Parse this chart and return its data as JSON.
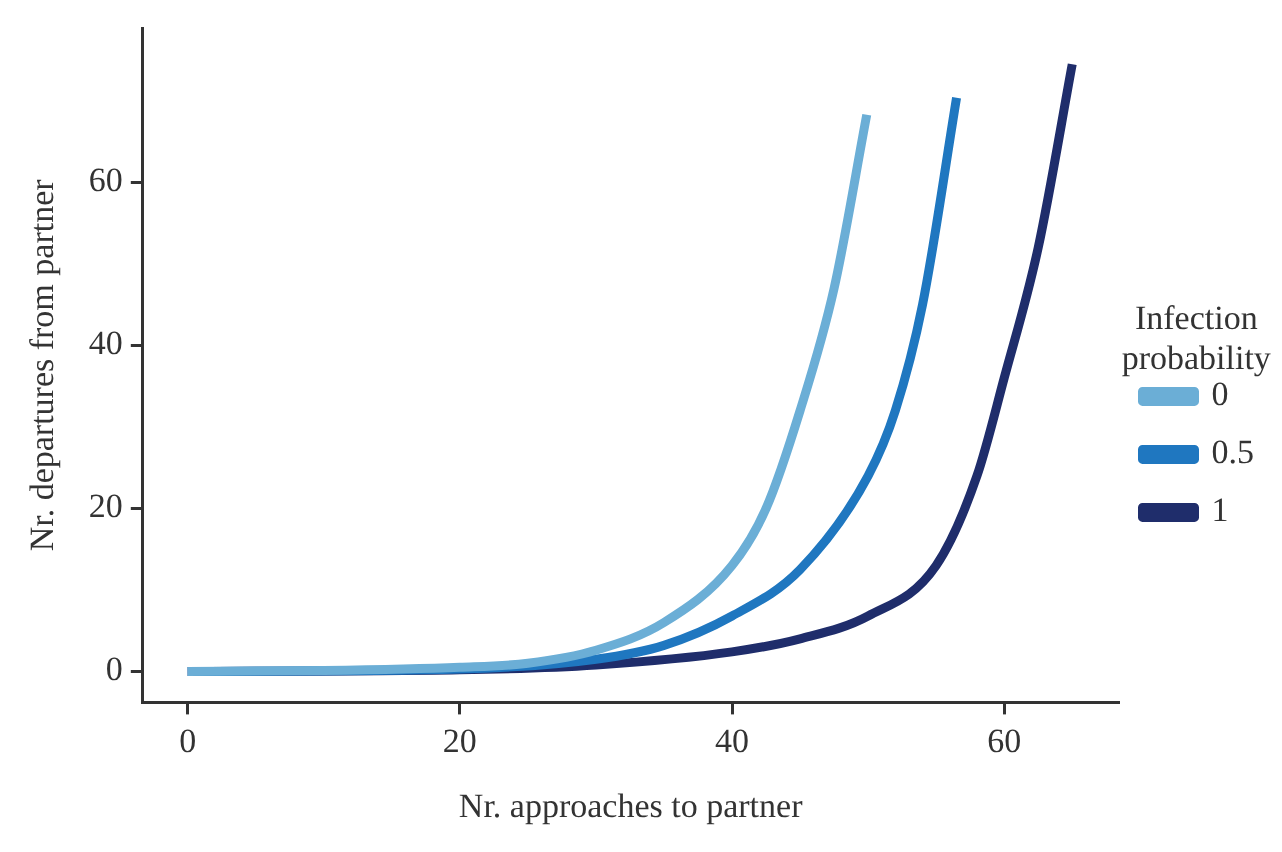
{
  "chart_data": {
    "type": "line",
    "xlabel": "Nr. approaches to partner",
    "ylabel": "Nr. departures from partner",
    "legend_title": "Infection probability",
    "legend": "right",
    "grid": false,
    "line_style": "solid",
    "xlim": [
      -3.3,
      68.4
    ],
    "ylim": [
      -3.8,
      78.9
    ],
    "xticks": [
      0,
      20,
      40,
      60
    ],
    "yticks": [
      0,
      20,
      40,
      60
    ],
    "series": [
      {
        "name": "0",
        "color": "#6baed6",
        "x": [
          0,
          10,
          20,
          25,
          30,
          35,
          40,
          42.5,
          45,
          47.5,
          49.9
        ],
        "values": [
          0,
          0.1,
          0.5,
          1,
          2.6,
          6,
          13,
          20,
          32,
          47,
          68.3
        ]
      },
      {
        "name": "0.5",
        "color": "#1f77c0",
        "x": [
          0,
          20,
          30,
          35,
          40,
          45,
          50,
          52,
          54,
          56.5
        ],
        "values": [
          0,
          0.3,
          1.5,
          3.2,
          6.8,
          12.5,
          24,
          32,
          45,
          70.4
        ]
      },
      {
        "name": "1",
        "color": "#1f2d6b",
        "x": [
          0,
          20,
          30,
          40,
          45,
          50,
          55,
          58,
          60,
          62.5,
          65
        ],
        "values": [
          0,
          0.2,
          0.8,
          2.4,
          4,
          6.8,
          13,
          24,
          36,
          52,
          74.5
        ]
      }
    ]
  }
}
